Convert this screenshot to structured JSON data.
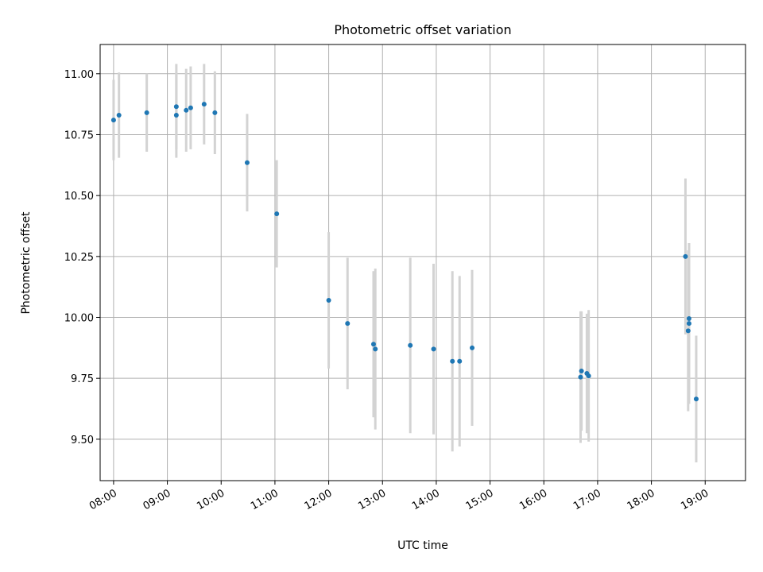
{
  "chart_data": {
    "type": "scatter",
    "title": "Photometric offset variation",
    "xlabel": "UTC time",
    "ylabel": "Photometric offset",
    "grid": true,
    "x_ticks": [
      "08:00",
      "09:00",
      "10:00",
      "11:00",
      "12:00",
      "13:00",
      "14:00",
      "15:00",
      "16:00",
      "17:00",
      "18:00",
      "19:00"
    ],
    "y_ticks": [
      "9.50",
      "9.75",
      "10.00",
      "10.25",
      "10.50",
      "10.75",
      "11.00"
    ],
    "xlim": [
      "07:45",
      "19:45"
    ],
    "ylim": [
      9.33,
      11.12
    ],
    "colors": {
      "point": "#1f77b4",
      "errorbar": "#d3d3d3",
      "grid": "#b0b0b0"
    },
    "points": [
      {
        "t": "08:00",
        "y": 10.81,
        "err": 0.165
      },
      {
        "t": "08:06",
        "y": 10.83,
        "err": 0.175
      },
      {
        "t": "08:37",
        "y": 10.84,
        "err": 0.16
      },
      {
        "t": "09:10",
        "y": 10.865,
        "err": 0.175
      },
      {
        "t": "09:10",
        "y": 10.83,
        "err": 0.175
      },
      {
        "t": "09:21",
        "y": 10.85,
        "err": 0.17
      },
      {
        "t": "09:26",
        "y": 10.86,
        "err": 0.17
      },
      {
        "t": "09:41",
        "y": 10.875,
        "err": 0.165
      },
      {
        "t": "09:53",
        "y": 10.84,
        "err": 0.17
      },
      {
        "t": "10:29",
        "y": 10.635,
        "err": 0.2
      },
      {
        "t": "11:02",
        "y": 10.425,
        "err": 0.22
      },
      {
        "t": "12:00",
        "y": 10.07,
        "err": 0.28
      },
      {
        "t": "12:21",
        "y": 9.975,
        "err": 0.27
      },
      {
        "t": "12:50",
        "y": 9.89,
        "err": 0.3
      },
      {
        "t": "12:52",
        "y": 9.87,
        "err": 0.33
      },
      {
        "t": "13:31",
        "y": 9.885,
        "err": 0.36
      },
      {
        "t": "13:57",
        "y": 9.87,
        "err": 0.35
      },
      {
        "t": "14:18",
        "y": 9.82,
        "err": 0.37
      },
      {
        "t": "14:26",
        "y": 9.82,
        "err": 0.35
      },
      {
        "t": "14:40",
        "y": 9.875,
        "err": 0.32
      },
      {
        "t": "16:41",
        "y": 9.755,
        "err": 0.27
      },
      {
        "t": "16:42",
        "y": 9.78,
        "err": 0.245
      },
      {
        "t": "16:48",
        "y": 9.77,
        "err": 0.245
      },
      {
        "t": "16:50",
        "y": 9.76,
        "err": 0.27
      },
      {
        "t": "18:38",
        "y": 10.25,
        "err": 0.32
      },
      {
        "t": "18:41",
        "y": 9.945,
        "err": 0.33
      },
      {
        "t": "18:42",
        "y": 9.975,
        "err": 0.33
      },
      {
        "t": "18:42",
        "y": 9.995,
        "err": 0.31
      },
      {
        "t": "18:50",
        "y": 9.665,
        "err": 0.26
      }
    ]
  }
}
